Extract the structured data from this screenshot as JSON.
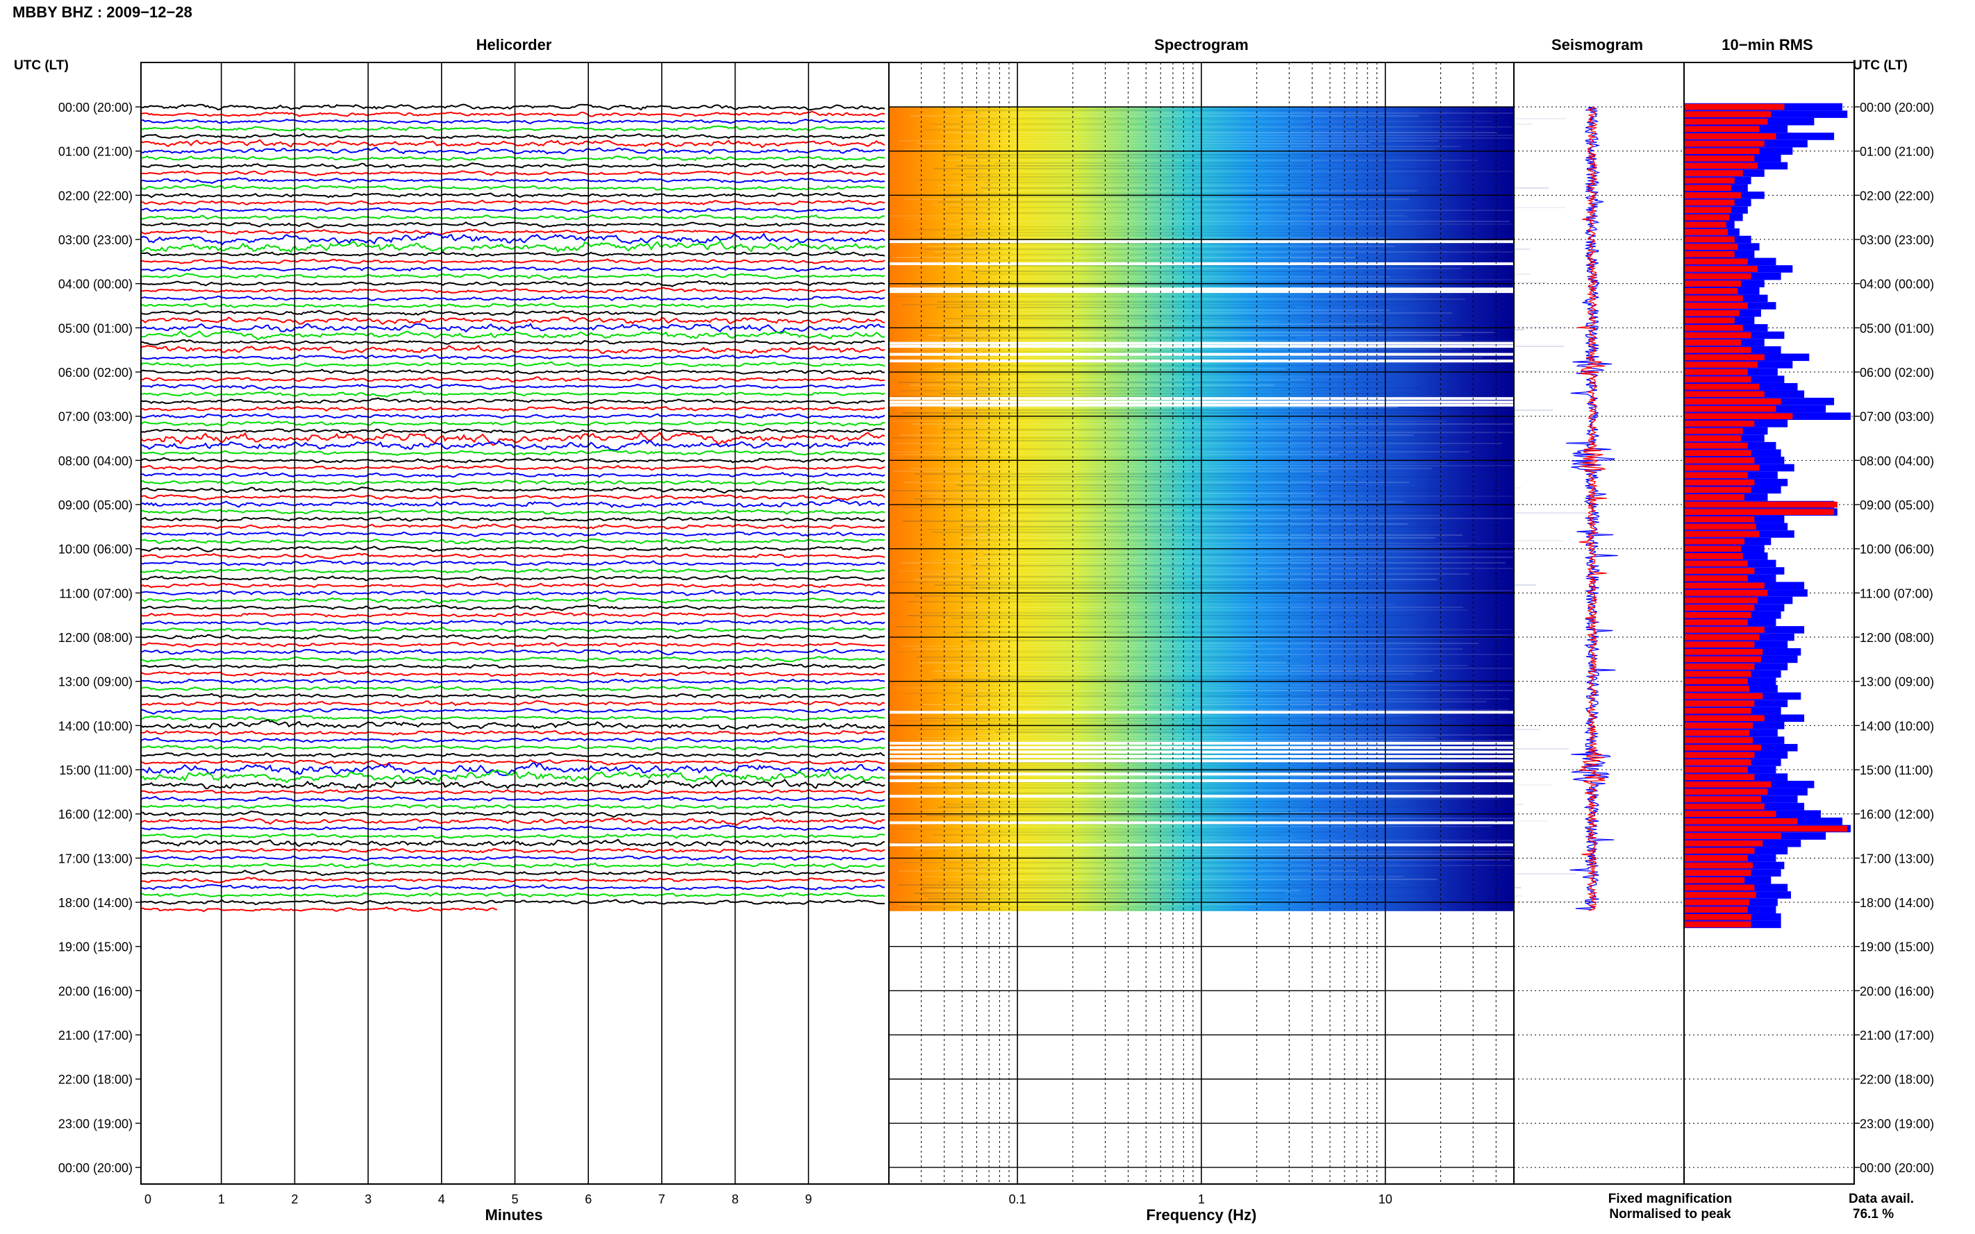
{
  "header": {
    "title": "MBBY BHZ : 2009−12−28"
  },
  "panels": {
    "helicorder": "Helicorder",
    "spectrogram": "Spectrogram",
    "seismogram": "Seismogram",
    "rms": "10−min RMS"
  },
  "axis_labels": {
    "left_time": "UTC (LT)",
    "right_time": "UTC (LT)",
    "minutes": "Minutes",
    "frequency": "Frequency (Hz)"
  },
  "legend": {
    "fixed": "Fixed magnification",
    "fixed_color": "#1a1aff",
    "normalised": "Normalised to peak",
    "normalised_color": "#ff1a1a"
  },
  "availability": {
    "label": "Data avail.",
    "value": "76.1 %"
  },
  "colors": {
    "trace_cycle": [
      "#000000",
      "#ff0000",
      "#0000ff",
      "#00dd00"
    ],
    "rms_fixed": "#0000ff",
    "rms_normalised": "#ff0000"
  },
  "chart_data": {
    "type": "heatmap",
    "time_ticks": [
      "00:00 (20:00)",
      "01:00 (21:00)",
      "02:00 (22:00)",
      "03:00 (23:00)",
      "04:00 (00:00)",
      "05:00 (01:00)",
      "06:00 (02:00)",
      "07:00 (03:00)",
      "08:00 (04:00)",
      "09:00 (05:00)",
      "10:00 (06:00)",
      "11:00 (07:00)",
      "12:00 (08:00)",
      "13:00 (09:00)",
      "14:00 (10:00)",
      "15:00 (11:00)",
      "16:00 (12:00)",
      "17:00 (13:00)",
      "18:00 (14:00)",
      "19:00 (15:00)",
      "20:00 (16:00)",
      "21:00 (17:00)",
      "22:00 (18:00)",
      "23:00 (19:00)",
      "00:00 (20:00)"
    ],
    "minute_ticks": [
      "0",
      "1",
      "2",
      "3",
      "4",
      "5",
      "6",
      "7",
      "8",
      "9"
    ],
    "minute_range": [
      0,
      10
    ],
    "frequency_ticks": [
      "0.1",
      "1",
      "10"
    ],
    "frequency_range_hz": [
      0.02,
      50
    ],
    "frequency_scale": "log",
    "data_end_hour": 18.2,
    "rms_tenmin": {
      "fixed": [
        0.95,
        0.98,
        0.78,
        0.62,
        0.9,
        0.74,
        0.65,
        0.58,
        0.62,
        0.48,
        0.4,
        0.38,
        0.48,
        0.4,
        0.38,
        0.35,
        0.3,
        0.33,
        0.4,
        0.45,
        0.42,
        0.55,
        0.65,
        0.58,
        0.48,
        0.45,
        0.5,
        0.55,
        0.46,
        0.42,
        0.5,
        0.6,
        0.48,
        0.58,
        0.75,
        0.65,
        0.56,
        0.6,
        0.68,
        0.72,
        0.9,
        0.85,
        1.0,
        0.62,
        0.5,
        0.48,
        0.55,
        0.58,
        0.6,
        0.66,
        0.56,
        0.62,
        0.58,
        0.5,
        0.9,
        0.92,
        0.6,
        0.62,
        0.66,
        0.52,
        0.48,
        0.5,
        0.55,
        0.6,
        0.55,
        0.72,
        0.74,
        0.65,
        0.6,
        0.58,
        0.55,
        0.72,
        0.66,
        0.62,
        0.7,
        0.68,
        0.62,
        0.58,
        0.55,
        0.56,
        0.7,
        0.62,
        0.58,
        0.72,
        0.6,
        0.56,
        0.6,
        0.68,
        0.62,
        0.58,
        0.55,
        0.62,
        0.78,
        0.74,
        0.68,
        0.72,
        0.82,
        0.95,
        1.0,
        0.85,
        0.7,
        0.62,
        0.55,
        0.6,
        0.58,
        0.52,
        0.62,
        0.64,
        0.56,
        0.55,
        0.58,
        0.58
      ],
      "normalised": [
        0.6,
        0.52,
        0.5,
        0.45,
        0.55,
        0.48,
        0.45,
        0.42,
        0.44,
        0.35,
        0.3,
        0.28,
        0.34,
        0.3,
        0.28,
        0.27,
        0.25,
        0.26,
        0.3,
        0.32,
        0.3,
        0.38,
        0.44,
        0.4,
        0.34,
        0.32,
        0.35,
        0.38,
        0.33,
        0.3,
        0.35,
        0.4,
        0.34,
        0.4,
        0.48,
        0.44,
        0.38,
        0.4,
        0.45,
        0.48,
        0.58,
        0.55,
        0.65,
        0.42,
        0.35,
        0.34,
        0.38,
        0.4,
        0.42,
        0.45,
        0.38,
        0.42,
        0.4,
        0.36,
        0.92,
        0.9,
        0.42,
        0.43,
        0.45,
        0.36,
        0.34,
        0.35,
        0.38,
        0.42,
        0.38,
        0.48,
        0.5,
        0.44,
        0.42,
        0.4,
        0.38,
        0.48,
        0.45,
        0.42,
        0.47,
        0.46,
        0.42,
        0.4,
        0.38,
        0.39,
        0.47,
        0.42,
        0.4,
        0.48,
        0.41,
        0.39,
        0.41,
        0.46,
        0.42,
        0.4,
        0.38,
        0.42,
        0.52,
        0.5,
        0.46,
        0.48,
        0.55,
        0.68,
        0.98,
        0.58,
        0.47,
        0.42,
        0.38,
        0.41,
        0.4,
        0.36,
        0.42,
        0.43,
        0.39,
        0.38,
        0.4,
        0.4
      ]
    }
  }
}
